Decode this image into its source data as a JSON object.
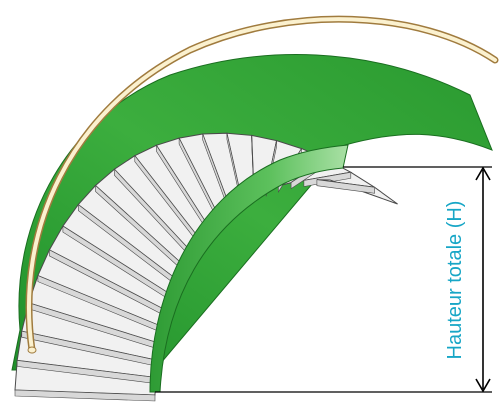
{
  "diagram": {
    "height_label": "Hauteur totale (H)",
    "colors": {
      "label": "#17a6c6",
      "stringer_light": "#7fd17a",
      "stringer_dark": "#1f8f2a",
      "stringer_mid": "#3cae3e",
      "tread_fill": "#f1f1f1",
      "tread_edge": "#4a4a4a",
      "handrail_fill": "#fbf1cf",
      "handrail_edge": "#a07b3e",
      "dimension_line": "#000000"
    }
  }
}
